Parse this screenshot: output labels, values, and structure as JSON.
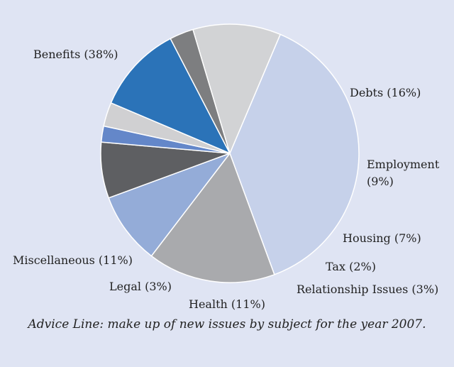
{
  "chart_data": {
    "type": "pie",
    "caption": "Advice Line: make up of new issues by subject for the year 2007.",
    "slices": [
      {
        "label": "Benefits (38%)",
        "category": "Benefits",
        "value": 38,
        "color": "#c6d1ea"
      },
      {
        "label": "Debts (16%)",
        "category": "Debts",
        "value": 16,
        "color": "#a9aaad"
      },
      {
        "label": [
          "Employment",
          "(9%)"
        ],
        "category": "Employment",
        "value": 9,
        "color": "#94acd8"
      },
      {
        "label": "Housing (7%)",
        "category": "Housing",
        "value": 7,
        "color": "#5e5f62"
      },
      {
        "label": "Tax (2%)",
        "category": "Tax",
        "value": 2,
        "color": "#6487c9"
      },
      {
        "label": "Relationship Issues (3%)",
        "category": "Relationship Issues",
        "value": 3,
        "color": "#d0d0d2"
      },
      {
        "label": "Health (11%)",
        "category": "Health",
        "value": 11,
        "color": "#2b73b8"
      },
      {
        "label": "Legal (3%)",
        "category": "Legal",
        "value": 3,
        "color": "#7d7e80"
      },
      {
        "label": "Miscellaneous (11%)",
        "category": "Miscellaneous",
        "value": 11,
        "color": "#d2d3d5"
      }
    ]
  }
}
